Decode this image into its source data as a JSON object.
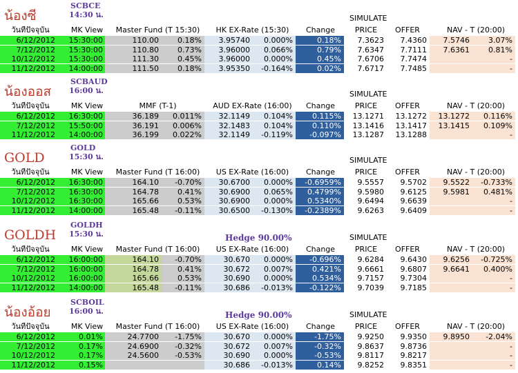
{
  "sections": [
    {
      "title": "น้องซี",
      "code": "SCBCE",
      "time": "14:30 น.",
      "hedge": "",
      "simulate": "SIMULATE",
      "headers": [
        "วันที่ปัจจุบัน",
        "MK View",
        "Master Fund (T 15:30)",
        "HK EX-Rate (15:30)",
        "Change",
        "PRICE",
        "OFFER",
        "NAV - T (20:00)"
      ],
      "rows": [
        [
          "6/12/2012",
          "15:30:00",
          "110.00",
          "0.18%",
          "3.95740",
          "0.000%",
          "0.18%",
          "7.3623",
          "7.4360",
          "7.5746",
          "3.07%"
        ],
        [
          "7/12/2012",
          "15:30:00",
          "110.80",
          "0.73%",
          "3.96000",
          "0.066%",
          "0.79%",
          "7.6347",
          "7.7111",
          "7.6361",
          "0.81%"
        ],
        [
          "10/12/2012",
          "15:30:00",
          "111.30",
          "0.45%",
          "3.96000",
          "0.000%",
          "0.45%",
          "7.6706",
          "7.7474",
          "",
          "-"
        ],
        [
          "11/12/2012",
          "14:00:00",
          "111.50",
          "0.18%",
          "3.95350",
          "-0.164%",
          "0.02%",
          "7.6717",
          "7.7485",
          "",
          "-"
        ]
      ]
    },
    {
      "title": "น้องออส",
      "code": "SCBAUD",
      "time": "16:00 น.",
      "hedge": "",
      "simulate": "SIMULATE",
      "headers": [
        "วันที่ปัจจุบัน",
        "MK View",
        "MMF (T-1)",
        "AUD EX-Rate (16:00)",
        "Change",
        "PRICE",
        "OFFER",
        "NAV - T (20:00)"
      ],
      "rows": [
        [
          "6/12/2012",
          "16:30:00",
          "36.189",
          "0.011%",
          "32.1149",
          "0.104%",
          "0.115%",
          "13.1271",
          "13.1272",
          "13.1272",
          "0.116%"
        ],
        [
          "7/12/2012",
          "15:50:00",
          "36.191",
          "0.006%",
          "32.1483",
          "0.104%",
          "0.110%",
          "13.1416",
          "13.1417",
          "13.1415",
          "0.109%"
        ],
        [
          "11/12/2012",
          "14:00:00",
          "36.199",
          "0.022%",
          "32.1149",
          "-0.119%",
          "-0.097%",
          "13.1287",
          "13.1288",
          "",
          "-"
        ]
      ]
    },
    {
      "title": "GOLD",
      "code": "GOLD",
      "time": "15:30 น.",
      "hedge": "",
      "simulate": "SIMULATE",
      "headers": [
        "วันที่ปัจจุบัน",
        "MK View",
        "Master Fund (T 16:00)",
        "US EX-Rate (16:00)",
        "Change",
        "PRICE",
        "OFFER",
        "NAV - T (20:00)"
      ],
      "rows": [
        [
          "6/12/2012",
          "16:30:00",
          "164.10",
          "-0.70%",
          "30.6700",
          "0.000%",
          "-0.6959%",
          "9.5557",
          "9.5702",
          "9.5522",
          "-0.733%"
        ],
        [
          "7/12/2012",
          "16:30:00",
          "164.78",
          "0.41%",
          "30.6900",
          "0.065%",
          "0.4799%",
          "9.5980",
          "9.6125",
          "9.5981",
          "0.481%"
        ],
        [
          "10/12/2012",
          "16:30:00",
          "165.66",
          "0.53%",
          "30.6900",
          "0.000%",
          "0.5340%",
          "9.6494",
          "9.6639",
          "",
          "-"
        ],
        [
          "11/12/2012",
          "14:00:00",
          "165.48",
          "-0.11%",
          "30.6500",
          "-0.130%",
          "-0.2389%",
          "9.6263",
          "9.6409",
          "",
          "-"
        ]
      ]
    },
    {
      "title": "GOLDH",
      "code": "GOLDH",
      "time": "15:30 น.",
      "hedge": "Hedge 90.00%",
      "simulate": "SIMULATE",
      "headers": [
        "วันที่ปัจจุบัน",
        "MK View",
        "Master Fund (T 16:00)",
        "US EX-Rate (16:00)",
        "Change",
        "PRICE",
        "OFFER",
        "NAV - T (20:00)"
      ],
      "rows": [
        [
          "6/12/2012",
          "16:00:00",
          "164.10",
          "-0.70%",
          "30.670",
          "0.000%",
          "-0.696%",
          "9.6284",
          "9.6430",
          "9.6256",
          "-0.725%"
        ],
        [
          "7/12/2012",
          "16:00:00",
          "164.78",
          "0.41%",
          "30.672",
          "0.007%",
          "0.421%",
          "9.6661",
          "9.6807",
          "9.6641",
          "0.400%"
        ],
        [
          "10/12/2012",
          "16:00:00",
          "165.66",
          "0.53%",
          "30.690",
          "0.000%",
          "0.534%",
          "9.7157",
          "9.7304",
          "",
          "-"
        ],
        [
          "11/12/2012",
          "14:00:00",
          "165.48",
          "-0.11%",
          "30.686",
          "-0.013%",
          "-0.122%",
          "9.7039",
          "9.7185",
          "",
          "-"
        ]
      ]
    },
    {
      "title": "น้องอ้อย",
      "code": "SCBOIL",
      "time": "16:00 น.",
      "hedge": "Hedge 90.00%",
      "simulate": "SIMULATE",
      "headers": [
        "วันที่ปัจจุบัน",
        "MK View",
        "Master Fund (T 16:00)",
        "US EX-Rate (16:00)",
        "Change",
        "PRICE",
        "OFFER",
        "NAV - T (20:00)"
      ],
      "rows": [
        [
          "6/12/2012",
          "0.01%",
          "24.7700",
          "-1.75%",
          "30.670",
          "0.000%",
          "-1.75%",
          "9.9250",
          "9.9350",
          "9.8950",
          "-2.04%"
        ],
        [
          "7/12/2012",
          "0.17%",
          "24.6900",
          "-0.32%",
          "30.672",
          "0.007%",
          "-0.32%",
          "9.8637",
          "9.8736",
          "",
          "-"
        ],
        [
          "10/12/2012",
          "0.17%",
          "24.5600",
          "-0.53%",
          "30.690",
          "0.000%",
          "-0.53%",
          "9.8117",
          "9.8217",
          "",
          "-"
        ],
        [
          "11/12/2012",
          "0.15%",
          "",
          "",
          "30.686",
          "-0.013%",
          "0.14%",
          "9.8252",
          "9.8351",
          "",
          "-"
        ]
      ]
    }
  ],
  "colors": {
    "date_bg": "#33ee33",
    "fund_bg": "#cccccc",
    "fund_highlight_bg": "#c4d79b",
    "fx_bg": "#dde7f1",
    "change_bg": "#2f5f9c",
    "nav_bg": "#fbe3d3",
    "title": "#c0392b",
    "code": "#5b3a9b"
  }
}
